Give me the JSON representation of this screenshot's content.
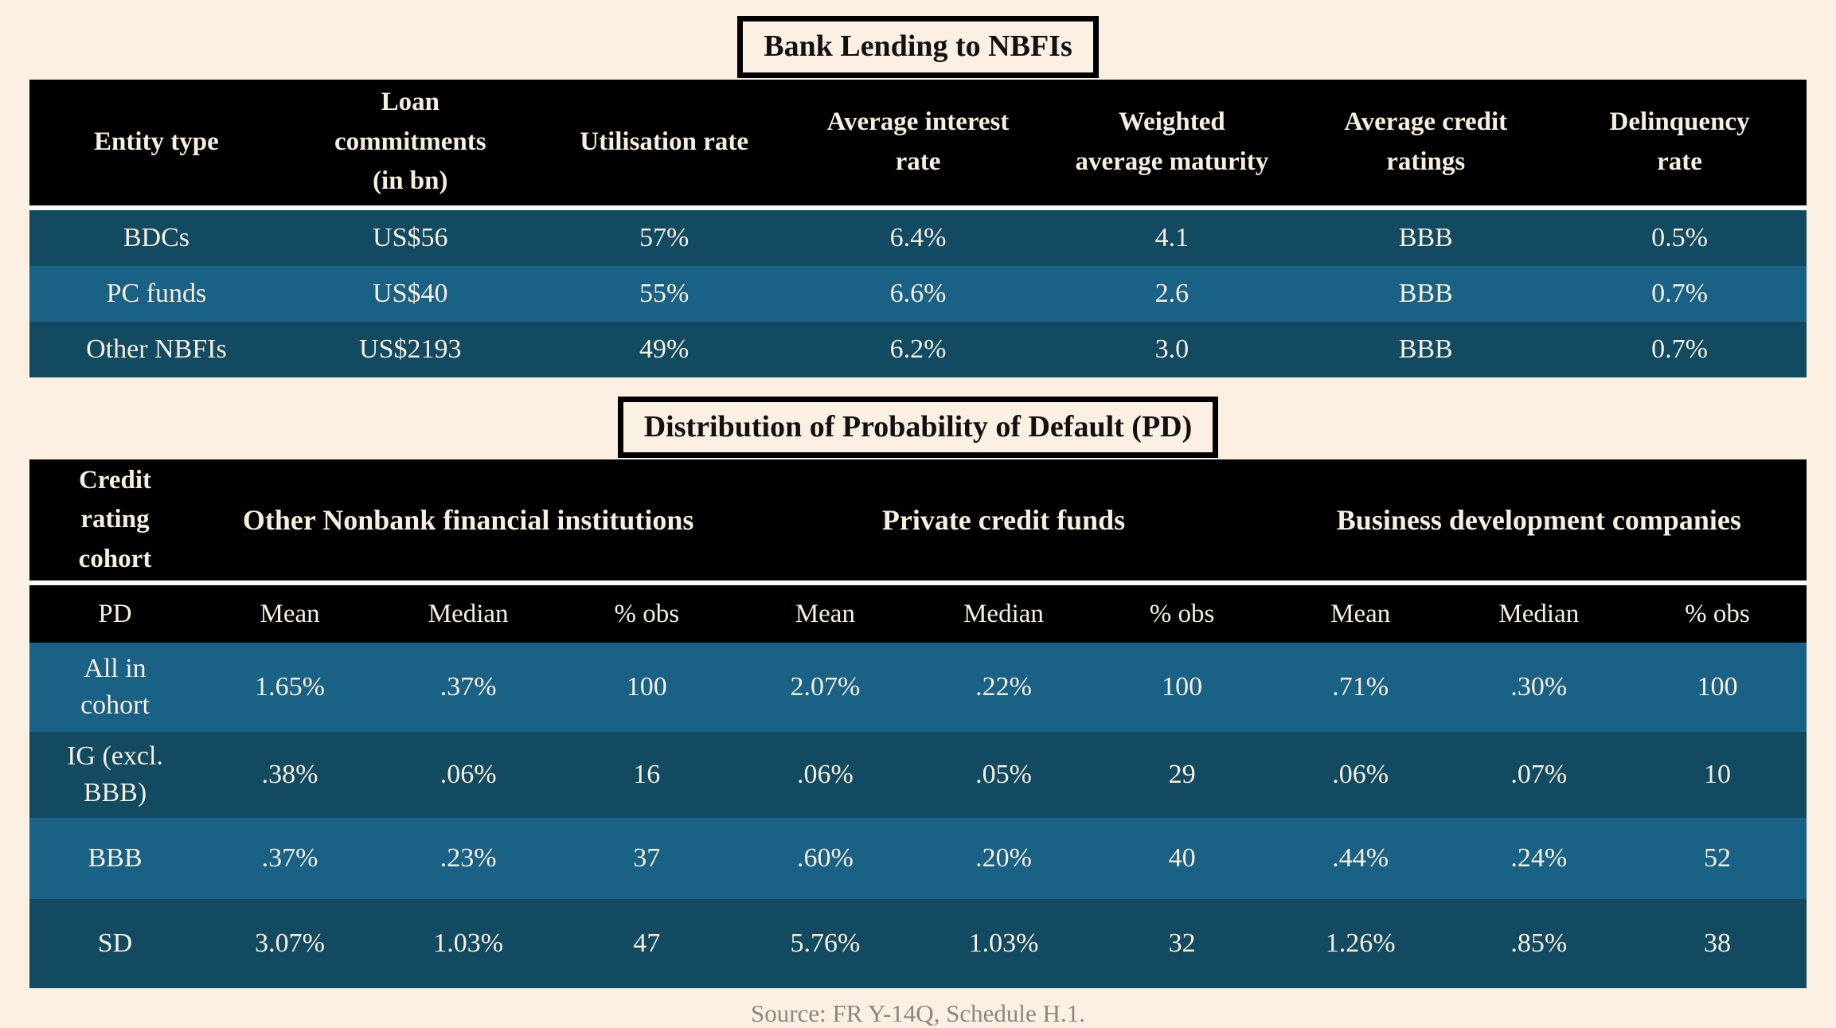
{
  "source_note": "Source: FR Y-14Q, Schedule H.1.",
  "colors": {
    "page_background": "#FBF0E2",
    "header_background": "#000000",
    "row_dark": "#114A61",
    "row_light": "#1A6186",
    "separator": "#FDFBF5",
    "table_text": "#F7EFDF",
    "source_text": "#8C8880"
  },
  "chart_data": [
    {
      "type": "table",
      "title": "Bank Lending to NBFIs",
      "columns": [
        "Entity type",
        "Loan\ncommitments\n(in bn)",
        "Utilisation rate",
        "Average interest\nrate",
        "Weighted\naverage maturity",
        "Average credit\nratings",
        "Delinquency\nrate"
      ],
      "rows": [
        [
          "BDCs",
          "US$56",
          "57%",
          "6.4%",
          "4.1",
          "BBB",
          "0.5%"
        ],
        [
          "PC funds",
          "US$40",
          "55%",
          "6.6%",
          "2.6",
          "BBB",
          "0.7%"
        ],
        [
          "Other NBFIs",
          "US$2193",
          "49%",
          "6.2%",
          "3.0",
          "BBB",
          "0.7%"
        ]
      ]
    },
    {
      "type": "table",
      "title": "Distribution of Probability of Default (PD)",
      "corner_header": "Credit\nrating\ncohort",
      "column_groups": [
        {
          "label": "Other Nonbank financial institutions",
          "span": 3
        },
        {
          "label": "Private credit funds",
          "span": 3
        },
        {
          "label": "Business development companies",
          "span": 3
        }
      ],
      "columns": [
        "PD",
        "Mean",
        "Median",
        "% obs",
        "Mean",
        "Median",
        "% obs",
        "Mean",
        "Median",
        "% obs"
      ],
      "rows": [
        [
          "All in\ncohort",
          "1.65%",
          ".37%",
          "100",
          "2.07%",
          ".22%",
          "100",
          ".71%",
          ".30%",
          "100"
        ],
        [
          "IG (excl.\nBBB)",
          ".38%",
          ".06%",
          "16",
          ".06%",
          ".05%",
          "29",
          ".06%",
          ".07%",
          "10"
        ],
        [
          "BBB",
          ".37%",
          ".23%",
          "37",
          ".60%",
          ".20%",
          "40",
          ".44%",
          ".24%",
          "52"
        ],
        [
          "SD",
          "3.07%",
          "1.03%",
          "47",
          "5.76%",
          "1.03%",
          "32",
          "1.26%",
          ".85%",
          "38"
        ]
      ]
    }
  ]
}
